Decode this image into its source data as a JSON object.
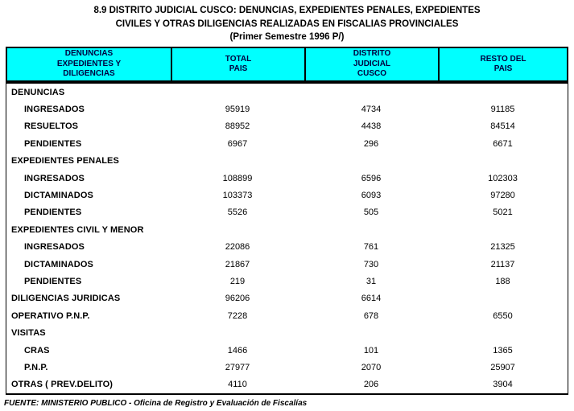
{
  "title": {
    "line1": "8.9 DISTRITO JUDICIAL CUSCO: DENUNCIAS, EXPEDIENTES PENALES, EXPEDIENTES",
    "line2": "CIVILES Y OTRAS DILIGENCIAS REALIZADAS EN FISCALIAS PROVINCIALES",
    "line3": "(Primer Semestre 1996 P/)"
  },
  "colors": {
    "header_bg": "#00ffff",
    "header_text": "#000040",
    "border": "#000000"
  },
  "table": {
    "columns": [
      "DENUNCIAS\nEXPEDIENTES Y\nDILIGENCIAS",
      "TOTAL\nPAIS",
      "DISTRITO\nJUDICIAL\nCUSCO",
      "RESTO DEL\nPAIS"
    ],
    "rows": [
      {
        "label": "DENUNCIAS",
        "values": [
          "",
          "",
          ""
        ]
      },
      {
        "label": "INGRESADOS",
        "values": [
          "95919",
          "4734",
          "91185"
        ]
      },
      {
        "label": "RESUELTOS",
        "values": [
          "88952",
          "4438",
          "84514"
        ]
      },
      {
        "label": "PENDIENTES",
        "values": [
          "6967",
          "296",
          "6671"
        ]
      },
      {
        "label": "EXPEDIENTES PENALES",
        "values": [
          "",
          "",
          ""
        ]
      },
      {
        "label": "INGRESADOS",
        "values": [
          "108899",
          "6596",
          "102303"
        ]
      },
      {
        "label": "DICTAMINADOS",
        "values": [
          "103373",
          "6093",
          "97280"
        ]
      },
      {
        "label": "PENDIENTES",
        "values": [
          "5526",
          "505",
          "5021"
        ]
      },
      {
        "label": "EXPEDIENTES CIVIL Y MENOR",
        "values": [
          "",
          "",
          ""
        ]
      },
      {
        "label": "INGRESADOS",
        "values": [
          "22086",
          "761",
          "21325"
        ]
      },
      {
        "label": "DICTAMINADOS",
        "values": [
          "21867",
          "730",
          "21137"
        ]
      },
      {
        "label": "PENDIENTES",
        "values": [
          "219",
          "31",
          "188"
        ]
      },
      {
        "label": "DILIGENCIAS JURIDICAS",
        "values": [
          "96206",
          "6614",
          ""
        ]
      },
      {
        "label": "OPERATIVO P.N.P.",
        "values": [
          "7228",
          "678",
          "6550"
        ]
      },
      {
        "label": "VISITAS",
        "values": [
          "",
          "",
          ""
        ]
      },
      {
        "label": "CRAS",
        "values": [
          "1466",
          "101",
          "1365"
        ]
      },
      {
        "label": "P.N.P.",
        "values": [
          "27977",
          "2070",
          "25907"
        ]
      },
      {
        "label": "OTRAS ( PREV.DELITO)",
        "values": [
          "4110",
          "206",
          "3904"
        ]
      }
    ]
  },
  "footer": {
    "source": "FUENTE: MINISTERIO PUBLICO - Oficina de Registro y Evaluación de Fiscalías"
  }
}
